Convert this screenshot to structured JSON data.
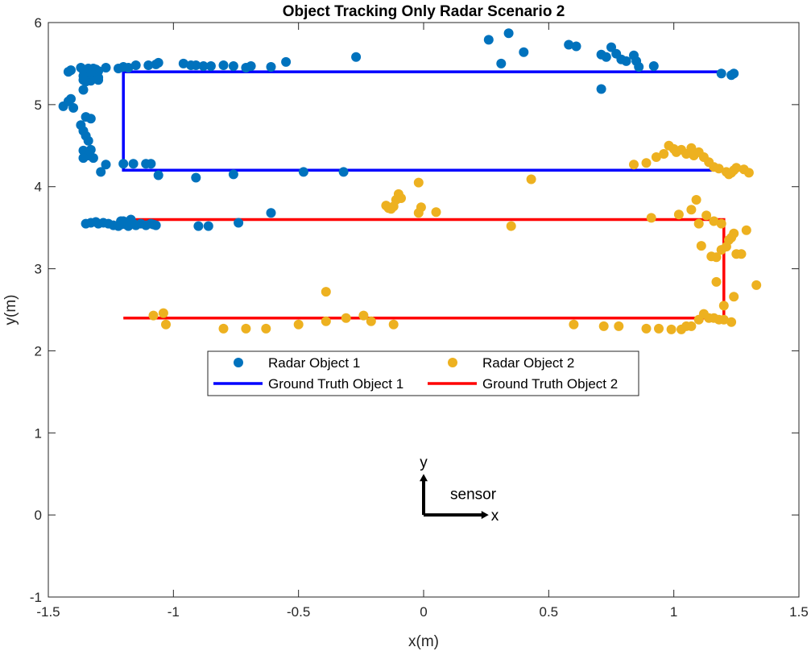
{
  "chart_data": {
    "type": "scatter",
    "title": "Object Tracking Only Radar Scenario 2",
    "xlabel": "x(m)",
    "ylabel": "y(m)",
    "xlim": [
      -1.5,
      1.5
    ],
    "ylim": [
      -1,
      6
    ],
    "xticks": [
      -1.5,
      -1,
      -0.5,
      0,
      0.5,
      1,
      1.5
    ],
    "yticks": [
      -1,
      0,
      1,
      2,
      3,
      4,
      5,
      6
    ],
    "xtick_labels": [
      "-1.5",
      "-1",
      "-0.5",
      "0",
      "0.5",
      "1",
      "1.5"
    ],
    "ytick_labels": [
      "-1",
      "0",
      "1",
      "2",
      "3",
      "4",
      "5",
      "6"
    ],
    "grid": false,
    "legend_position": "center, below plotted data, two columns",
    "series": [
      {
        "name": "Radar Object 1",
        "kind": "scatter",
        "color": "#0072BD",
        "points": [
          [
            -1.44,
            4.98
          ],
          [
            -1.42,
            5.04
          ],
          [
            -1.4,
            4.96
          ],
          [
            -1.41,
            5.07
          ],
          [
            -1.36,
            5.18
          ],
          [
            -1.37,
            4.75
          ],
          [
            -1.36,
            4.68
          ],
          [
            -1.35,
            4.62
          ],
          [
            -1.34,
            4.56
          ],
          [
            -1.35,
            4.85
          ],
          [
            -1.33,
            4.83
          ],
          [
            -1.36,
            4.44
          ],
          [
            -1.34,
            4.38
          ],
          [
            -1.36,
            4.35
          ],
          [
            -1.32,
            4.35
          ],
          [
            -1.33,
            4.45
          ],
          [
            -1.29,
            4.18
          ],
          [
            -1.27,
            4.27
          ],
          [
            -1.42,
            5.4
          ],
          [
            -1.41,
            5.42
          ],
          [
            -1.37,
            5.45
          ],
          [
            -1.36,
            5.42
          ],
          [
            -1.35,
            5.38
          ],
          [
            -1.34,
            5.44
          ],
          [
            -1.33,
            5.42
          ],
          [
            -1.32,
            5.44
          ],
          [
            -1.31,
            5.43
          ],
          [
            -1.3,
            5.41
          ],
          [
            -1.36,
            5.35
          ],
          [
            -1.34,
            5.33
          ],
          [
            -1.32,
            5.36
          ],
          [
            -1.3,
            5.33
          ],
          [
            -1.33,
            5.29
          ],
          [
            -1.3,
            5.3
          ],
          [
            -1.35,
            5.28
          ],
          [
            -1.36,
            5.3
          ],
          [
            -1.27,
            5.45
          ],
          [
            -1.22,
            5.44
          ],
          [
            -1.2,
            5.46
          ],
          [
            -1.18,
            5.45
          ],
          [
            -1.15,
            5.48
          ],
          [
            -1.1,
            5.48
          ],
          [
            -1.07,
            5.49
          ],
          [
            -1.06,
            5.51
          ],
          [
            -0.96,
            5.5
          ],
          [
            -0.93,
            5.48
          ],
          [
            -0.91,
            5.48
          ],
          [
            -0.88,
            5.47
          ],
          [
            -0.85,
            5.47
          ],
          [
            -0.8,
            5.48
          ],
          [
            -0.76,
            5.47
          ],
          [
            -0.71,
            5.45
          ],
          [
            -0.69,
            5.47
          ],
          [
            -0.61,
            5.46
          ],
          [
            -0.55,
            5.52
          ],
          [
            -0.27,
            5.58
          ],
          [
            0.26,
            5.79
          ],
          [
            0.31,
            5.5
          ],
          [
            0.34,
            5.87
          ],
          [
            0.4,
            5.64
          ],
          [
            0.58,
            5.73
          ],
          [
            0.61,
            5.71
          ],
          [
            0.71,
            5.61
          ],
          [
            0.73,
            5.58
          ],
          [
            0.75,
            5.7
          ],
          [
            0.77,
            5.62
          ],
          [
            0.79,
            5.55
          ],
          [
            0.81,
            5.53
          ],
          [
            0.84,
            5.6
          ],
          [
            0.85,
            5.53
          ],
          [
            0.86,
            5.46
          ],
          [
            0.92,
            5.47
          ],
          [
            0.71,
            5.19
          ],
          [
            1.19,
            5.38
          ],
          [
            1.23,
            5.36
          ],
          [
            1.24,
            5.38
          ],
          [
            -1.2,
            4.28
          ],
          [
            -1.16,
            4.28
          ],
          [
            -1.11,
            4.28
          ],
          [
            -1.09,
            4.28
          ],
          [
            -1.06,
            4.14
          ],
          [
            -0.91,
            4.11
          ],
          [
            -0.76,
            4.15
          ],
          [
            -0.48,
            4.18
          ],
          [
            -0.32,
            4.18
          ],
          [
            -1.35,
            3.55
          ],
          [
            -1.33,
            3.56
          ],
          [
            -1.31,
            3.57
          ],
          [
            -1.3,
            3.55
          ],
          [
            -1.28,
            3.56
          ],
          [
            -1.26,
            3.55
          ],
          [
            -1.24,
            3.53
          ],
          [
            -1.22,
            3.52
          ],
          [
            -1.21,
            3.54
          ],
          [
            -1.2,
            3.58
          ],
          [
            -1.19,
            3.54
          ],
          [
            -1.18,
            3.52
          ],
          [
            -1.17,
            3.56
          ],
          [
            -1.16,
            3.55
          ],
          [
            -1.15,
            3.53
          ],
          [
            -1.13,
            3.55
          ],
          [
            -1.11,
            3.53
          ],
          [
            -1.09,
            3.55
          ],
          [
            -1.08,
            3.54
          ],
          [
            -1.07,
            3.53
          ],
          [
            -1.21,
            3.58
          ],
          [
            -1.17,
            3.6
          ],
          [
            -0.9,
            3.52
          ],
          [
            -0.86,
            3.52
          ],
          [
            -0.74,
            3.56
          ],
          [
            -0.61,
            3.68
          ]
        ]
      },
      {
        "name": "Radar Object 2",
        "kind": "scatter",
        "color": "#EDB120",
        "points": [
          [
            -1.08,
            2.43
          ],
          [
            -1.04,
            2.46
          ],
          [
            -1.03,
            2.32
          ],
          [
            -0.8,
            2.27
          ],
          [
            -0.71,
            2.27
          ],
          [
            -0.63,
            2.27
          ],
          [
            -0.5,
            2.32
          ],
          [
            -0.39,
            2.36
          ],
          [
            -0.39,
            2.72
          ],
          [
            -0.31,
            2.4
          ],
          [
            -0.24,
            2.43
          ],
          [
            -0.21,
            2.36
          ],
          [
            -0.12,
            2.32
          ],
          [
            -0.15,
            3.77
          ],
          [
            -0.14,
            3.74
          ],
          [
            -0.13,
            3.73
          ],
          [
            -0.12,
            3.76
          ],
          [
            -0.11,
            3.84
          ],
          [
            -0.1,
            3.91
          ],
          [
            -0.09,
            3.86
          ],
          [
            -0.02,
            3.68
          ],
          [
            -0.01,
            3.75
          ],
          [
            0.05,
            3.69
          ],
          [
            -0.02,
            4.05
          ],
          [
            0.35,
            3.52
          ],
          [
            0.43,
            4.09
          ],
          [
            0.6,
            2.32
          ],
          [
            0.72,
            2.3
          ],
          [
            0.78,
            2.3
          ],
          [
            0.89,
            2.27
          ],
          [
            0.94,
            2.27
          ],
          [
            0.99,
            2.26
          ],
          [
            1.03,
            2.26
          ],
          [
            1.05,
            2.3
          ],
          [
            1.07,
            2.3
          ],
          [
            1.1,
            2.38
          ],
          [
            1.12,
            2.45
          ],
          [
            1.14,
            2.4
          ],
          [
            1.16,
            2.4
          ],
          [
            1.18,
            2.38
          ],
          [
            1.2,
            2.38
          ],
          [
            1.23,
            2.35
          ],
          [
            1.24,
            2.66
          ],
          [
            1.2,
            2.55
          ],
          [
            1.17,
            2.84
          ],
          [
            1.15,
            3.15
          ],
          [
            1.17,
            3.14
          ],
          [
            1.19,
            3.23
          ],
          [
            1.21,
            3.27
          ],
          [
            1.22,
            3.35
          ],
          [
            1.23,
            3.38
          ],
          [
            1.24,
            3.43
          ],
          [
            1.25,
            3.18
          ],
          [
            1.27,
            3.18
          ],
          [
            1.29,
            3.47
          ],
          [
            1.33,
            2.8
          ],
          [
            1.11,
            3.28
          ],
          [
            1.1,
            3.55
          ],
          [
            1.13,
            3.65
          ],
          [
            1.16,
            3.58
          ],
          [
            1.19,
            3.55
          ],
          [
            1.09,
            3.84
          ],
          [
            1.07,
            3.72
          ],
          [
            1.02,
            3.66
          ],
          [
            0.91,
            3.62
          ],
          [
            0.84,
            4.27
          ],
          [
            0.89,
            4.29
          ],
          [
            0.93,
            4.36
          ],
          [
            0.96,
            4.4
          ],
          [
            0.98,
            4.5
          ],
          [
            1.0,
            4.46
          ],
          [
            1.01,
            4.42
          ],
          [
            1.03,
            4.45
          ],
          [
            1.05,
            4.4
          ],
          [
            1.07,
            4.47
          ],
          [
            1.08,
            4.38
          ],
          [
            1.1,
            4.42
          ],
          [
            1.12,
            4.36
          ],
          [
            1.14,
            4.3
          ],
          [
            1.16,
            4.24
          ],
          [
            1.18,
            4.22
          ],
          [
            1.21,
            4.18
          ],
          [
            1.22,
            4.15
          ],
          [
            1.24,
            4.2
          ],
          [
            1.25,
            4.23
          ],
          [
            1.28,
            4.21
          ],
          [
            1.3,
            4.17
          ],
          [
            1.23,
            4.17
          ]
        ]
      },
      {
        "name": "Ground Truth Object 1",
        "kind": "line",
        "color": "#0000FF",
        "points": [
          [
            1.2,
            5.4
          ],
          [
            -1.2,
            5.4
          ],
          [
            -1.2,
            4.2
          ],
          [
            1.2,
            4.2
          ]
        ]
      },
      {
        "name": "Ground Truth Object 2",
        "kind": "line",
        "color": "#FF0000",
        "points": [
          [
            -1.2,
            3.6
          ],
          [
            1.2,
            3.6
          ],
          [
            1.2,
            2.4
          ],
          [
            -1.2,
            2.4
          ]
        ]
      }
    ],
    "annotations": {
      "sensor_label": "sensor",
      "x_arrow_label": "x",
      "y_arrow_label": "y",
      "sensor_origin": [
        0,
        0
      ],
      "x_arrow_length": 0.26,
      "y_arrow_length": 0.5
    }
  }
}
